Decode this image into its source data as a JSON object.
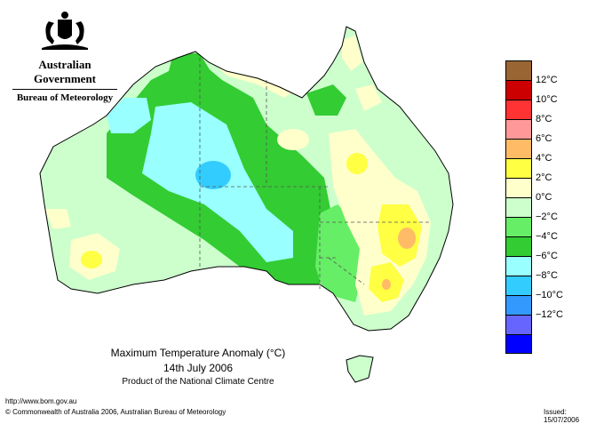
{
  "header": {
    "government": "Australian Government",
    "bureau": "Bureau of Meteorology"
  },
  "title": {
    "line1": "Maximum Temperature Anomaly (°C)",
    "line2": "14th July 2006",
    "line3": "Product of the National Climate Centre"
  },
  "footer": {
    "url": "http://www.bom.gov.au",
    "copyright": "© Commonwealth of Australia 2006, Australian Bureau of Meteorology",
    "issued": "Issued: 15/07/2006"
  },
  "legend": {
    "colors": [
      "#996633",
      "#cc0000",
      "#ff3333",
      "#ff9999",
      "#ffbb66",
      "#ffff44",
      "#ffffcc",
      "#ccffcc",
      "#66ee66",
      "#33cc33",
      "#99ffff",
      "#33ccff",
      "#3399ff",
      "#6666ff",
      "#0000ff"
    ],
    "ticks": [
      "12°C",
      "10°C",
      "8°C",
      "6°C",
      "4°C",
      "2°C",
      "0°C",
      "−2°C",
      "−4°C",
      "−6°C",
      "−8°C",
      "−10°C",
      "−12°C"
    ]
  },
  "palette": {
    "ocean": "#ffffff",
    "coast": "#000000",
    "boundary": "#555555"
  }
}
